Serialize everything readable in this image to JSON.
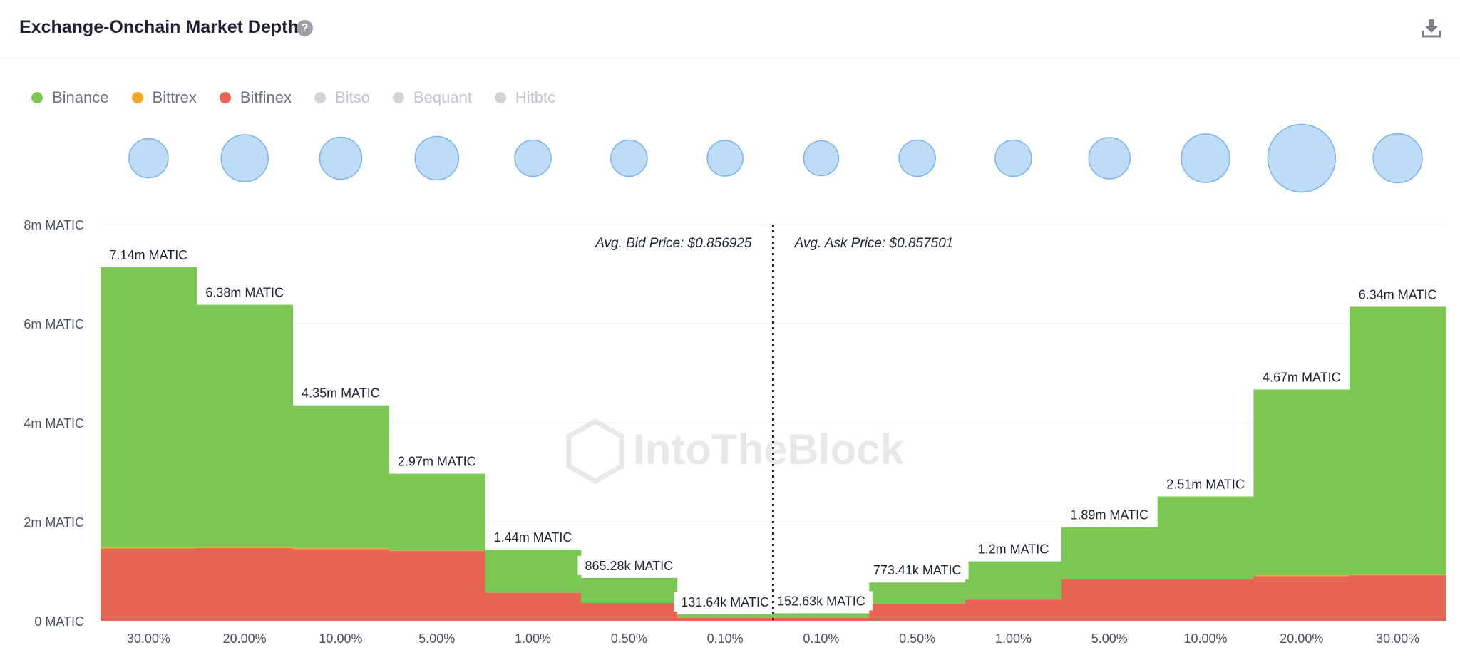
{
  "header": {
    "title": "Exchange-Onchain Market Depth",
    "help_icon": "question-circle-icon",
    "download_icon": "download-icon"
  },
  "legend": [
    {
      "label": "Binance",
      "color": "#7cc653",
      "active": true
    },
    {
      "label": "Bittrex",
      "color": "#f5a623",
      "active": true
    },
    {
      "label": "Bitfinex",
      "color": "#e76554",
      "active": true
    },
    {
      "label": "Bitso",
      "color": "#d0d3d7",
      "active": false
    },
    {
      "label": "Bequant",
      "color": "#d0d3d7",
      "active": false
    },
    {
      "label": "Hitbtc",
      "color": "#d0d3d7",
      "active": false
    }
  ],
  "watermark": "IntoTheBlock",
  "chart_data": {
    "type": "area",
    "x_categories": [
      "30.00%",
      "20.00%",
      "10.00%",
      "5.00%",
      "1.00%",
      "0.50%",
      "0.10%",
      "0.10%",
      "0.50%",
      "1.00%",
      "5.00%",
      "10.00%",
      "20.00%",
      "30.00%"
    ],
    "y_ticks": [
      "0 MATIC",
      "2m MATIC",
      "4m MATIC",
      "6m MATIC",
      "8m MATIC"
    ],
    "ylim": [
      0,
      8000000
    ],
    "totals": [
      7140000,
      6380000,
      4350000,
      2970000,
      1440000,
      865280,
      131640,
      152630,
      773410,
      1200000,
      1890000,
      2510000,
      4670000,
      6340000
    ],
    "total_labels": [
      "7.14m MATIC",
      "6.38m MATIC",
      "4.35m MATIC",
      "2.97m MATIC",
      "1.44m MATIC",
      "865.28k MATIC",
      "131.64k MATIC",
      "152.63k MATIC",
      "773.41k MATIC",
      "1.2m MATIC",
      "1.89m MATIC",
      "2.51m MATIC",
      "4.67m MATIC",
      "6.34m MATIC"
    ],
    "series": [
      {
        "name": "Bitfinex",
        "color": "#e76554",
        "values": [
          1460000,
          1470000,
          1450000,
          1410000,
          570000,
          360000,
          60000,
          60000,
          350000,
          430000,
          840000,
          840000,
          900000,
          920000
        ]
      },
      {
        "name": "Bittrex",
        "color": "#f5a623",
        "values": [
          20000,
          20000,
          20000,
          10000,
          0,
          0,
          0,
          0,
          0,
          0,
          0,
          0,
          20000,
          10000
        ]
      },
      {
        "name": "Binance",
        "color": "#7cc653",
        "values": [
          5660000,
          4890000,
          2880000,
          1550000,
          870000,
          505280,
          71640,
          92630,
          423410,
          770000,
          1050000,
          1670000,
          3750000,
          5410000
        ]
      }
    ],
    "liquidity_bubbles": [
      0.55,
      0.66,
      0.59,
      0.61,
      0.51,
      0.51,
      0.5,
      0.49,
      0.51,
      0.51,
      0.58,
      0.68,
      0.95,
      0.69
    ],
    "avg_bid_label": "Avg. Bid Price: $0.856925",
    "avg_ask_label": "Avg. Ask Price: $0.857501"
  }
}
